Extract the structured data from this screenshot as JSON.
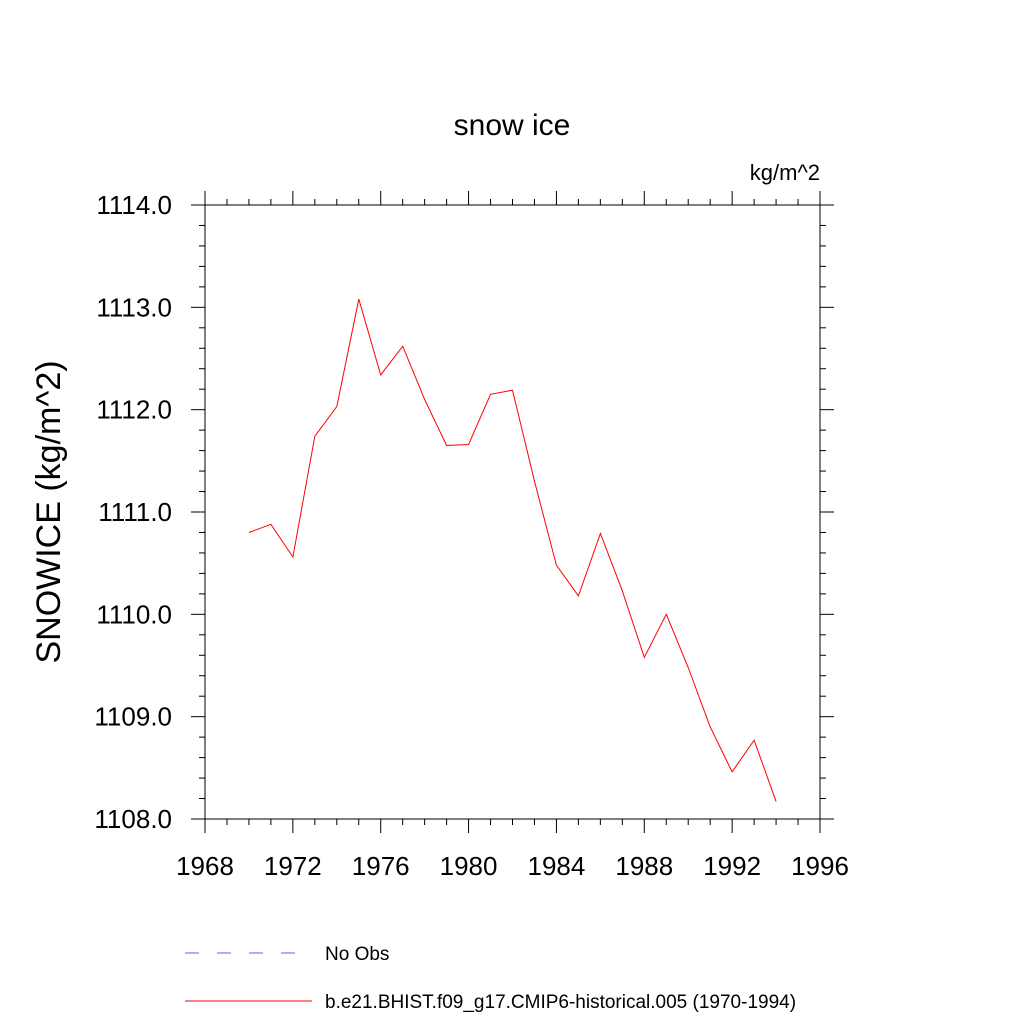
{
  "chart_data": {
    "type": "line",
    "title": "snow ice",
    "units": "kg/m^2",
    "ylabel": "SNOWICE  (kg/m^2)",
    "xlabel": "",
    "xlim": [
      1968,
      1996
    ],
    "ylim": [
      1108.0,
      1114.0
    ],
    "xticks": [
      1968,
      1972,
      1976,
      1980,
      1984,
      1988,
      1992,
      1996
    ],
    "yticks": [
      "1108.0",
      "1109.0",
      "1110.0",
      "1111.0",
      "1112.0",
      "1113.0",
      "1114.0"
    ],
    "grid": false,
    "legend_position": "bottom",
    "series": [
      {
        "name": "b.e21.BHIST.f09_g17.CMIP6-historical.005 (1970-1994)",
        "color": "#ff0000",
        "style": "solid",
        "x": [
          1970,
          1971,
          1972,
          1973,
          1974,
          1975,
          1976,
          1977,
          1978,
          1979,
          1980,
          1981,
          1982,
          1983,
          1984,
          1985,
          1986,
          1987,
          1988,
          1989,
          1990,
          1991,
          1992,
          1993,
          1994
        ],
        "y": [
          1110.8,
          1110.88,
          1110.56,
          1111.74,
          1112.03,
          1113.08,
          1112.34,
          1112.62,
          1112.1,
          1111.65,
          1111.66,
          1112.15,
          1112.19,
          1111.3,
          1110.48,
          1110.18,
          1110.79,
          1110.23,
          1109.58,
          1110.0,
          1109.48,
          1108.9,
          1108.46,
          1108.77,
          1108.17
        ]
      }
    ],
    "legend": [
      {
        "label": "No Obs",
        "color": "#6666cc",
        "style": "dashed"
      },
      {
        "label": "b.e21.BHIST.f09_g17.CMIP6-historical.005 (1970-1994)",
        "color": "#ff0000",
        "style": "solid"
      }
    ]
  }
}
